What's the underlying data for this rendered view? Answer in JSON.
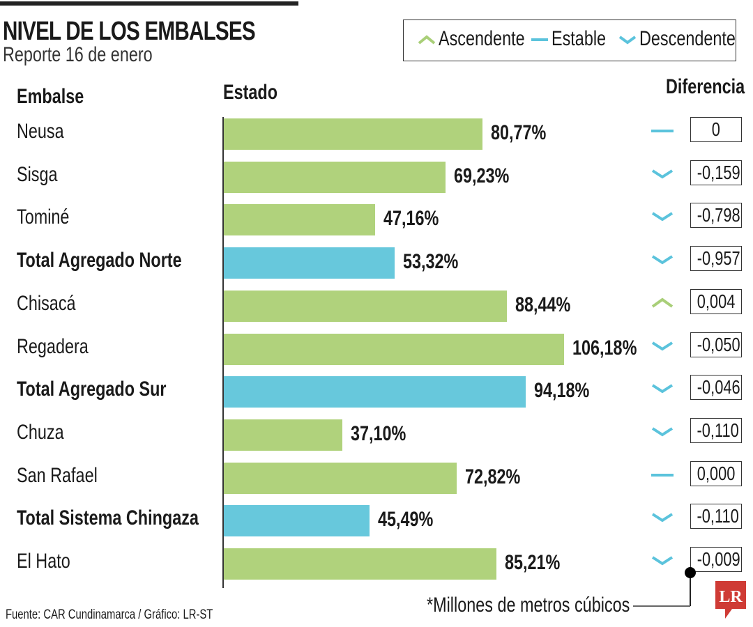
{
  "title": "NIVEL DE LOS EMBALSES",
  "subtitle": "Reporte 16 de enero",
  "legend": [
    {
      "label": "Ascendente",
      "icon": "chevron-up-icon",
      "color": "#a9cf78"
    },
    {
      "label": "Estable",
      "icon": "dash-icon",
      "color": "#5bc3dc"
    },
    {
      "label": "Descendente",
      "icon": "chevron-down-icon",
      "color": "#5bc3dc"
    }
  ],
  "headers": {
    "embalse": "Embalse",
    "estado": "Estado",
    "diferencia": "Diferencia"
  },
  "colors": {
    "reservoir": "#b0d27c",
    "total": "#67c8dc"
  },
  "chart_data": {
    "type": "bar",
    "orientation": "horizontal",
    "title": "NIVEL DE LOS EMBALSES",
    "categories": [
      "Neusa",
      "Sisga",
      "Tominé",
      "Total Agregado Norte",
      "Chisacá",
      "Regadera",
      "Total Agregado Sur",
      "Chuza",
      "San Rafael",
      "Total Sistema Chingaza",
      "El Hato"
    ],
    "values": [
      80.77,
      69.23,
      47.16,
      53.32,
      88.44,
      106.18,
      94.18,
      37.1,
      72.82,
      45.49,
      85.21
    ],
    "value_labels": [
      "80,77%",
      "69,23%",
      "47,16%",
      "53,32%",
      "88,44%",
      "106,18%",
      "94,18%",
      "37,10%",
      "72,82%",
      "45,49%",
      "85,21%"
    ],
    "is_total": [
      false,
      false,
      false,
      true,
      false,
      false,
      true,
      false,
      false,
      true,
      false
    ],
    "diferencia": [
      "0",
      "-0,159",
      "-0,798",
      "-0,957",
      "0,004",
      "-0,050",
      "-0,046",
      "-0,110",
      "0,000",
      "-0,110",
      "-0,009"
    ],
    "trend": [
      "stable",
      "down",
      "down",
      "down",
      "up",
      "down",
      "down",
      "down",
      "stable",
      "down",
      "down"
    ],
    "xlim": [
      0,
      115
    ]
  },
  "note": "*Millones de metros cúbicos",
  "source": "Fuente: CAR Cundinamarca / Gráfico: LR-ST",
  "logo": "LR"
}
